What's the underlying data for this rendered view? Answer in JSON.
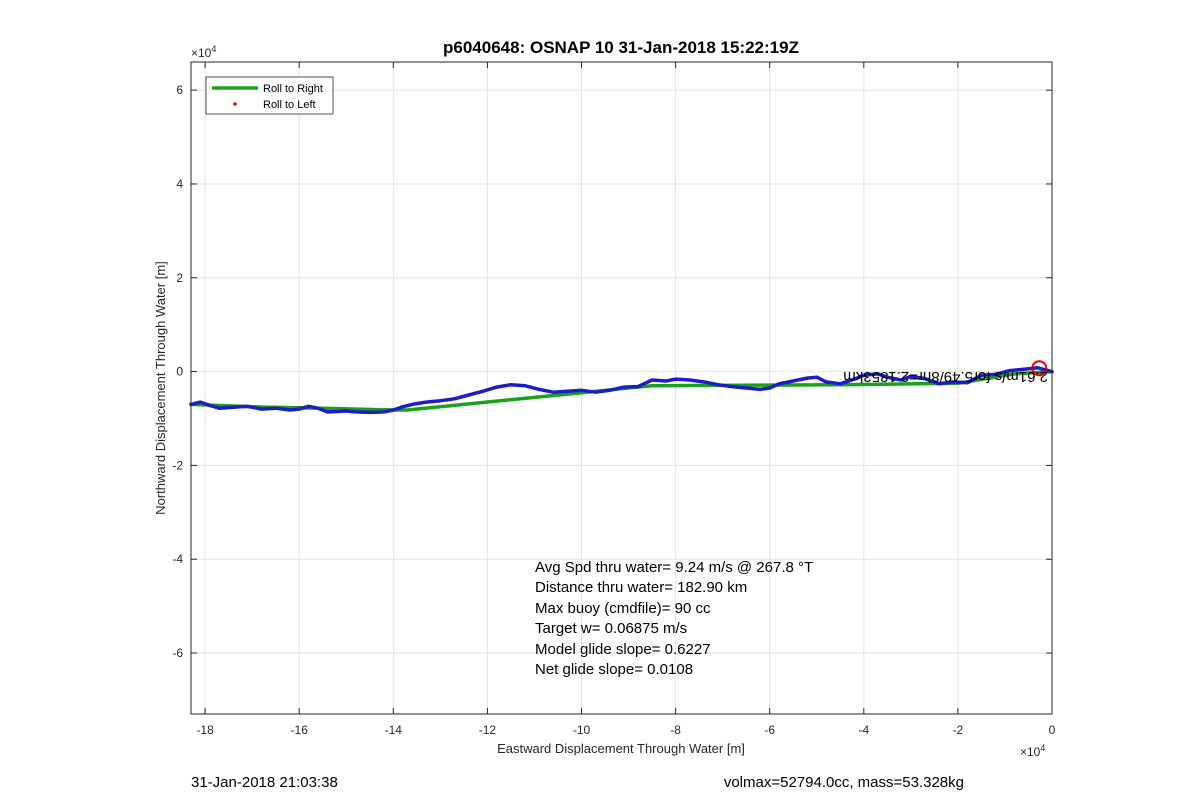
{
  "chart_data": {
    "type": "line",
    "title": "p6040648: OSNAP 10 31-Jan-2018 15:22:19Z",
    "xlabel": "Eastward Displacement Through Water [m]",
    "ylabel": "Northward Displacement Through Water [m]",
    "x_exponent_label": "×10",
    "x_exponent": "4",
    "y_exponent_label": "×10",
    "y_exponent": "4",
    "xlim": [
      -18.3,
      0
    ],
    "ylim": [
      -7.3,
      6.6
    ],
    "xticks": [
      -18,
      -16,
      -14,
      -12,
      -10,
      -8,
      -6,
      -4,
      -2,
      0
    ],
    "yticks": [
      -6,
      -4,
      -2,
      0,
      2,
      4,
      6
    ],
    "grid": true,
    "legend_position": "top-left",
    "legend": [
      {
        "label": "Roll to Right",
        "color": "#1aa01a",
        "style": "line"
      },
      {
        "label": "Roll to Left",
        "color": "#e60000",
        "style": "dot"
      }
    ],
    "series": [
      {
        "name": "Roll to Right",
        "color": "#1aa01a",
        "x": [
          -18.3,
          -17.0,
          -15.5,
          -14.0,
          -13.7,
          -10.0,
          -8.5,
          -4.5,
          -2.0,
          -0.8,
          0.0
        ],
        "y": [
          -0.7,
          -0.75,
          -0.78,
          -0.82,
          -0.82,
          -0.45,
          -0.3,
          -0.28,
          -0.25,
          -0.05,
          0.0
        ]
      },
      {
        "color": "#1c1cc8",
        "x": [
          -18.3,
          -18.1,
          -17.9,
          -17.7,
          -17.4,
          -17.1,
          -16.8,
          -16.5,
          -16.2,
          -16.0,
          -15.8,
          -15.6,
          -15.4,
          -15.2,
          -15.0,
          -14.8,
          -14.5,
          -14.2,
          -14.0,
          -13.8,
          -13.6,
          -13.3,
          -13.0,
          -12.7,
          -12.4,
          -12.1,
          -11.8,
          -11.5,
          -11.2,
          -10.9,
          -10.6,
          -10.3,
          -10.0,
          -9.7,
          -9.4,
          -9.1,
          -8.8,
          -8.5,
          -8.2,
          -8.0,
          -7.7,
          -7.4,
          -7.1,
          -6.8,
          -6.5,
          -6.2,
          -6.0,
          -5.8,
          -5.5,
          -5.2,
          -5.0,
          -4.8,
          -4.5,
          -4.2,
          -4.0,
          -3.7,
          -3.5,
          -3.2,
          -3.0,
          -2.7,
          -2.4,
          -2.1,
          -1.8,
          -1.5,
          -1.2,
          -0.9,
          -0.6,
          -0.3,
          0.0
        ],
        "y": [
          -0.7,
          -0.65,
          -0.72,
          -0.78,
          -0.76,
          -0.74,
          -0.8,
          -0.78,
          -0.82,
          -0.8,
          -0.74,
          -0.78,
          -0.86,
          -0.85,
          -0.84,
          -0.86,
          -0.87,
          -0.86,
          -0.82,
          -0.75,
          -0.7,
          -0.65,
          -0.62,
          -0.58,
          -0.5,
          -0.42,
          -0.33,
          -0.28,
          -0.3,
          -0.38,
          -0.44,
          -0.42,
          -0.4,
          -0.44,
          -0.4,
          -0.33,
          -0.32,
          -0.18,
          -0.2,
          -0.16,
          -0.18,
          -0.22,
          -0.28,
          -0.32,
          -0.35,
          -0.38,
          -0.35,
          -0.26,
          -0.2,
          -0.14,
          -0.12,
          -0.22,
          -0.26,
          -0.16,
          -0.08,
          -0.05,
          -0.12,
          -0.18,
          -0.1,
          -0.15,
          -0.26,
          -0.22,
          -0.24,
          -0.08,
          -0.06,
          0.02,
          0.05,
          0.08,
          0.0
        ]
      }
    ],
    "start_marker": {
      "x": -0.27,
      "y": 0.07,
      "color": "#e60000",
      "style": "circle"
    },
    "mirrored_label": "2.61m/s for5.49/8hr=2.1853km",
    "stats": [
      "Avg Spd thru water=  9.24 m/s @ 267.8 °T",
      "Distance thru water= 182.90 km",
      "Max buoy (cmdfile)= 90 cc",
      "Target w= 0.06875 m/s",
      "Model glide slope= 0.6227",
      "Net glide slope= 0.0108"
    ],
    "footer_left": "31-Jan-2018 21:03:38",
    "footer_right": "volmax=52794.0cc, mass=53.328kg"
  }
}
